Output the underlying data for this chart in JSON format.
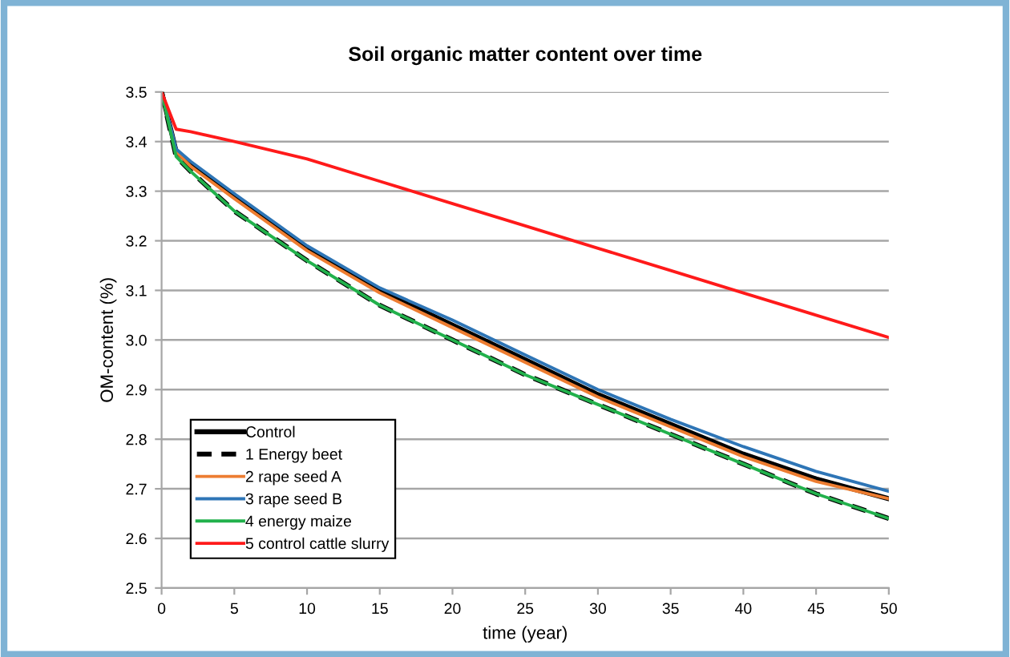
{
  "chart_data": {
    "type": "line",
    "title": "Soil organic matter content over time",
    "xlabel": "time (year)",
    "ylabel": "OM-content (%)",
    "x": [
      0,
      1,
      2,
      5,
      10,
      15,
      20,
      25,
      30,
      35,
      40,
      45,
      50
    ],
    "series": [
      {
        "name": "Control",
        "color": "#000000",
        "line_style": "solid",
        "values": [
          3.5,
          3.38,
          3.355,
          3.29,
          3.185,
          3.1,
          3.03,
          2.96,
          2.89,
          2.83,
          2.77,
          2.72,
          2.68
        ]
      },
      {
        "name": "1 Energy beet",
        "color": "#000000",
        "line_style": "dashed",
        "values": [
          3.5,
          3.37,
          3.34,
          3.26,
          3.16,
          3.07,
          3.0,
          2.93,
          2.87,
          2.81,
          2.75,
          2.69,
          2.64
        ]
      },
      {
        "name": "2 rape seed A",
        "color": "#ed7d31",
        "line_style": "solid",
        "values": [
          3.5,
          3.38,
          3.35,
          3.285,
          3.18,
          3.095,
          3.025,
          2.955,
          2.885,
          2.825,
          2.765,
          2.715,
          2.68
        ]
      },
      {
        "name": "3 rape seed B",
        "color": "#2e75b6",
        "line_style": "solid",
        "values": [
          3.5,
          3.385,
          3.36,
          3.295,
          3.19,
          3.105,
          3.04,
          2.97,
          2.9,
          2.84,
          2.785,
          2.735,
          2.695
        ]
      },
      {
        "name": "4 energy maize",
        "color": "#22b14c",
        "line_style": "solid",
        "values": [
          3.5,
          3.37,
          3.34,
          3.26,
          3.16,
          3.07,
          3.0,
          2.93,
          2.87,
          2.81,
          2.75,
          2.69,
          2.64
        ]
      },
      {
        "name": "5 control cattle slurry",
        "color": "#ff1a1a",
        "line_style": "solid",
        "values": [
          3.5,
          3.425,
          3.42,
          3.4,
          3.365,
          3.32,
          3.275,
          3.23,
          3.185,
          3.14,
          3.095,
          3.05,
          3.005
        ]
      }
    ],
    "xlim": [
      0,
      50
    ],
    "xticks": [
      0,
      5,
      10,
      15,
      20,
      25,
      30,
      35,
      40,
      45,
      50
    ],
    "ylim": [
      2.5,
      3.5
    ],
    "yticks": [
      {
        "value": 2.5,
        "label": "2.5"
      },
      {
        "value": 2.6,
        "label": "2.6"
      },
      {
        "value": 2.7,
        "label": "2.7"
      },
      {
        "value": 2.8,
        "label": "2.8"
      },
      {
        "value": 2.9,
        "label": "2.9"
      },
      {
        "value": 3.0,
        "label": "3.0"
      },
      {
        "value": 3.1,
        "label": "3.1"
      },
      {
        "value": 3.2,
        "label": "3.2"
      },
      {
        "value": 3.3,
        "label": "3.3"
      },
      {
        "value": 3.4,
        "label": "3.4"
      },
      {
        "value": 3.5,
        "label": "3.5"
      }
    ],
    "grid": "y",
    "legend": "bottom left",
    "marker": "none"
  }
}
